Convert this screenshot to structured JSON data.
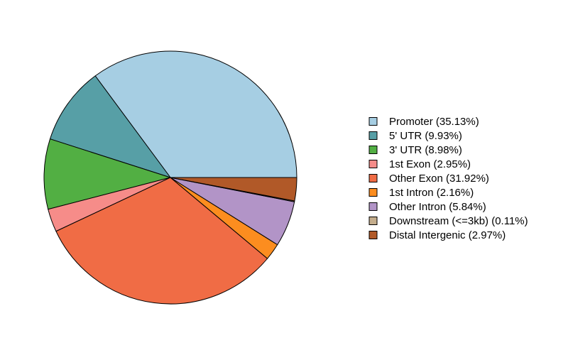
{
  "chart_data": {
    "type": "pie",
    "title": "",
    "start_angle_deg": 0,
    "direction": "counterclockwise",
    "legend_position": "right",
    "slices": [
      {
        "label": "Promoter (35.13%)",
        "category": "Promoter",
        "value": 35.13,
        "color": "#A6CEE3"
      },
      {
        "label": "5' UTR (9.93%)",
        "category": "5' UTR",
        "value": 9.93,
        "color": "#579FA6"
      },
      {
        "label": "3' UTR (8.98%)",
        "category": "3' UTR",
        "value": 8.98,
        "color": "#52AF43"
      },
      {
        "label": "1st Exon (2.95%)",
        "category": "1st Exon",
        "value": 2.95,
        "color": "#F68C89"
      },
      {
        "label": "Other Exon (31.92%)",
        "category": "Other Exon",
        "value": 31.92,
        "color": "#F06C45"
      },
      {
        "label": "1st Intron (2.16%)",
        "category": "1st Intron",
        "value": 2.16,
        "color": "#FC8D1F"
      },
      {
        "label": "Other Intron (5.84%)",
        "category": "Other Intron",
        "value": 5.84,
        "color": "#B294C7"
      },
      {
        "label": "Downstream (<=3kb) (0.11%)",
        "category": "Downstream (<=3kb)",
        "value": 0.11,
        "color": "#C4AD8C"
      },
      {
        "label": "Distal Intergenic (2.97%)",
        "category": "Distal Intergenic",
        "value": 2.97,
        "color": "#B15928"
      }
    ]
  }
}
